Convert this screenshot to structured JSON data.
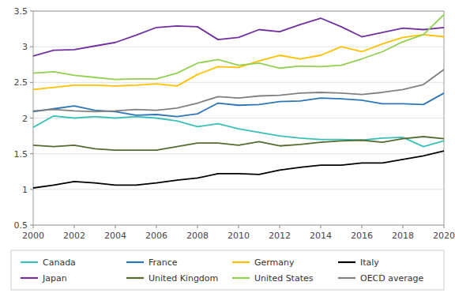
{
  "chart_data": {
    "type": "line",
    "x": [
      2000,
      2001,
      2002,
      2003,
      2004,
      2005,
      2006,
      2007,
      2008,
      2009,
      2010,
      2011,
      2012,
      2013,
      2014,
      2015,
      2016,
      2017,
      2018,
      2019,
      2020
    ],
    "series": [
      {
        "name": "Canada",
        "color": "#38c0b8",
        "values": [
          1.87,
          2.03,
          2.0,
          2.02,
          2.0,
          2.02,
          2.0,
          1.96,
          1.88,
          1.92,
          1.85,
          1.8,
          1.75,
          1.72,
          1.7,
          1.7,
          1.69,
          1.72,
          1.73,
          1.6,
          1.68
        ]
      },
      {
        "name": "France",
        "color": "#2e75b6",
        "values": [
          2.09,
          2.13,
          2.17,
          2.11,
          2.09,
          2.04,
          2.05,
          2.02,
          2.06,
          2.21,
          2.18,
          2.19,
          2.23,
          2.24,
          2.28,
          2.27,
          2.25,
          2.2,
          2.2,
          2.19,
          2.35
        ]
      },
      {
        "name": "Germany",
        "color": "#ffc000",
        "values": [
          2.4,
          2.43,
          2.46,
          2.46,
          2.45,
          2.46,
          2.48,
          2.45,
          2.61,
          2.72,
          2.71,
          2.8,
          2.88,
          2.83,
          2.88,
          3.0,
          2.93,
          3.04,
          3.13,
          3.17,
          3.14
        ]
      },
      {
        "name": "Italy",
        "color": "#000000",
        "values": [
          1.02,
          1.06,
          1.11,
          1.09,
          1.06,
          1.06,
          1.09,
          1.13,
          1.16,
          1.22,
          1.22,
          1.21,
          1.27,
          1.31,
          1.34,
          1.34,
          1.37,
          1.37,
          1.42,
          1.47,
          1.54
        ]
      },
      {
        "name": "Japan",
        "color": "#7030a0",
        "values": [
          2.87,
          2.95,
          2.96,
          3.01,
          3.06,
          3.16,
          3.27,
          3.29,
          3.28,
          3.1,
          3.13,
          3.24,
          3.21,
          3.31,
          3.4,
          3.28,
          3.14,
          3.2,
          3.26,
          3.24,
          3.27
        ]
      },
      {
        "name": "United Kingdom",
        "color": "#556b2f",
        "values": [
          1.62,
          1.6,
          1.62,
          1.57,
          1.55,
          1.55,
          1.55,
          1.6,
          1.65,
          1.65,
          1.62,
          1.67,
          1.61,
          1.63,
          1.66,
          1.68,
          1.69,
          1.66,
          1.71,
          1.74,
          1.71
        ]
      },
      {
        "name": "United States",
        "color": "#92d050",
        "values": [
          2.63,
          2.65,
          2.6,
          2.57,
          2.54,
          2.55,
          2.55,
          2.63,
          2.77,
          2.82,
          2.74,
          2.77,
          2.7,
          2.73,
          2.72,
          2.74,
          2.83,
          2.93,
          3.07,
          3.17,
          3.45
        ]
      },
      {
        "name": "OECD average",
        "color": "#808080",
        "values": [
          2.1,
          2.12,
          2.1,
          2.09,
          2.1,
          2.12,
          2.11,
          2.14,
          2.21,
          2.3,
          2.28,
          2.31,
          2.32,
          2.35,
          2.36,
          2.35,
          2.33,
          2.36,
          2.4,
          2.47,
          2.68
        ]
      }
    ],
    "xlim": [
      2000,
      2020
    ],
    "xticks": [
      2000,
      2002,
      2004,
      2006,
      2008,
      2010,
      2012,
      2014,
      2016,
      2018,
      2020
    ],
    "ylim": [
      0.5,
      3.5
    ],
    "yticks": [
      0.5,
      1,
      1.5,
      2,
      2.5,
      3,
      3.5
    ],
    "grid": true,
    "legend": "bottom"
  }
}
